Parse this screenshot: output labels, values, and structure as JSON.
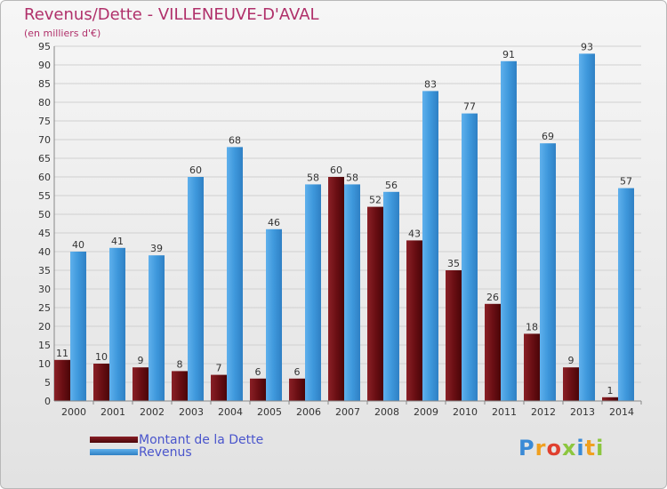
{
  "header": {
    "title": "Revenus/Dette - VILLENEUVE-D'AVAL",
    "subtitle": "(en milliers d'€)"
  },
  "legend": {
    "items": [
      {
        "label": "Montant de la Dette",
        "color": "#6b0f14"
      },
      {
        "label": "Revenus",
        "color": "#3e98dc"
      }
    ]
  },
  "logo": {
    "text": "Proxiti",
    "letters": [
      "P",
      "r",
      "o",
      "x",
      "i",
      "t",
      "i"
    ],
    "colors": [
      "#3a8ad6",
      "#f0a020",
      "#e0402f",
      "#8cc63f",
      "#3a8ad6",
      "#f0a020",
      "#8cc63f"
    ]
  },
  "chart_data": {
    "type": "bar",
    "categories": [
      "2000",
      "2001",
      "2002",
      "2003",
      "2004",
      "2005",
      "2006",
      "2007",
      "2008",
      "2009",
      "2010",
      "2011",
      "2012",
      "2013",
      "2014"
    ],
    "series": [
      {
        "name": "Montant de la Dette",
        "values": [
          11,
          10,
          9,
          8,
          7,
          6,
          6,
          60,
          52,
          43,
          35,
          26,
          18,
          9,
          1
        ],
        "color": "#6b0f14"
      },
      {
        "name": "Revenus",
        "values": [
          40,
          41,
          39,
          60,
          68,
          46,
          58,
          58,
          56,
          83,
          77,
          91,
          69,
          93,
          57
        ],
        "color": "#3e98dc"
      }
    ],
    "ylim": [
      0,
      95
    ],
    "yticks": [
      0,
      5,
      10,
      15,
      20,
      25,
      30,
      35,
      40,
      45,
      50,
      55,
      60,
      65,
      70,
      75,
      80,
      85,
      90,
      95
    ],
    "grid": true,
    "legend_position": "bottom-left"
  }
}
